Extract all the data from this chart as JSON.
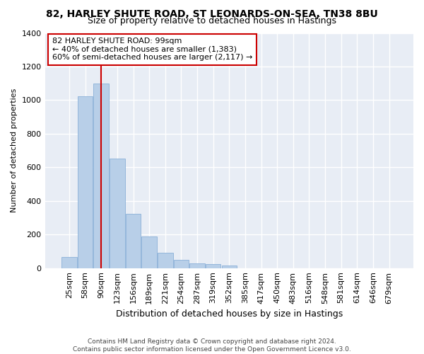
{
  "title1": "82, HARLEY SHUTE ROAD, ST LEONARDS-ON-SEA, TN38 8BU",
  "title2": "Size of property relative to detached houses in Hastings",
  "xlabel": "Distribution of detached houses by size in Hastings",
  "ylabel": "Number of detached properties",
  "footer": "Contains HM Land Registry data © Crown copyright and database right 2024.\nContains public sector information licensed under the Open Government Licence v3.0.",
  "categories": [
    "25sqm",
    "58sqm",
    "90sqm",
    "123sqm",
    "156sqm",
    "189sqm",
    "221sqm",
    "254sqm",
    "287sqm",
    "319sqm",
    "352sqm",
    "385sqm",
    "417sqm",
    "450sqm",
    "483sqm",
    "516sqm",
    "548sqm",
    "581sqm",
    "614sqm",
    "646sqm",
    "679sqm"
  ],
  "values": [
    65,
    1022,
    1098,
    653,
    325,
    190,
    90,
    48,
    27,
    22,
    15,
    0,
    0,
    0,
    0,
    0,
    0,
    0,
    0,
    0,
    0
  ],
  "bar_color": "#b8cfe8",
  "bar_edge_color": "#8ab0d8",
  "background_color": "#ffffff",
  "plot_bg_color": "#e8edf5",
  "grid_color": "#ffffff",
  "annotation_text": "82 HARLEY SHUTE ROAD: 99sqm\n← 40% of detached houses are smaller (1,383)\n60% of semi-detached houses are larger (2,117) →",
  "annotation_box_color": "#ffffff",
  "annotation_box_edge_color": "#cc0000",
  "vline_x": 2.0,
  "vline_color": "#cc0000",
  "ylim": [
    0,
    1400
  ],
  "yticks": [
    0,
    200,
    400,
    600,
    800,
    1000,
    1200,
    1400
  ],
  "title1_fontsize": 10,
  "title2_fontsize": 9,
  "ylabel_fontsize": 8,
  "xlabel_fontsize": 9,
  "tick_fontsize": 8,
  "footer_fontsize": 6.5,
  "annotation_fontsize": 8
}
